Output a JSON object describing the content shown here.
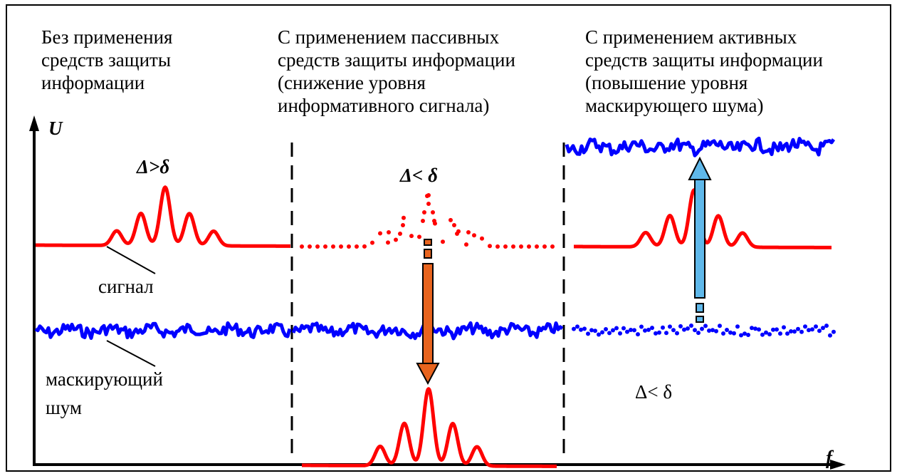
{
  "captions": {
    "left": [
      "Без применения",
      "средств защиты",
      "информации"
    ],
    "middle": [
      "С применением пассивных",
      "средств защиты информации",
      "(снижение уровня",
      "информативного сигнала)"
    ],
    "right": [
      "С применением активных",
      "средств защиты информации",
      "(повышение уровня",
      "маскирующего шума)"
    ]
  },
  "axes": {
    "y_label": "U",
    "x_label": "f"
  },
  "labels": {
    "signal": "сигнал",
    "noise_line1": "маскирующий",
    "noise_line2": "шум",
    "delta_gt": "Δ>δ",
    "delta_lt_mid": "Δ< δ",
    "delta_lt_right": "Δ< δ"
  },
  "colors": {
    "signal": "#ff0000",
    "noise": "#0000ff",
    "arrow_down": "#e8641e",
    "arrow_up": "#5fb8ea",
    "frame": "#000000"
  }
}
